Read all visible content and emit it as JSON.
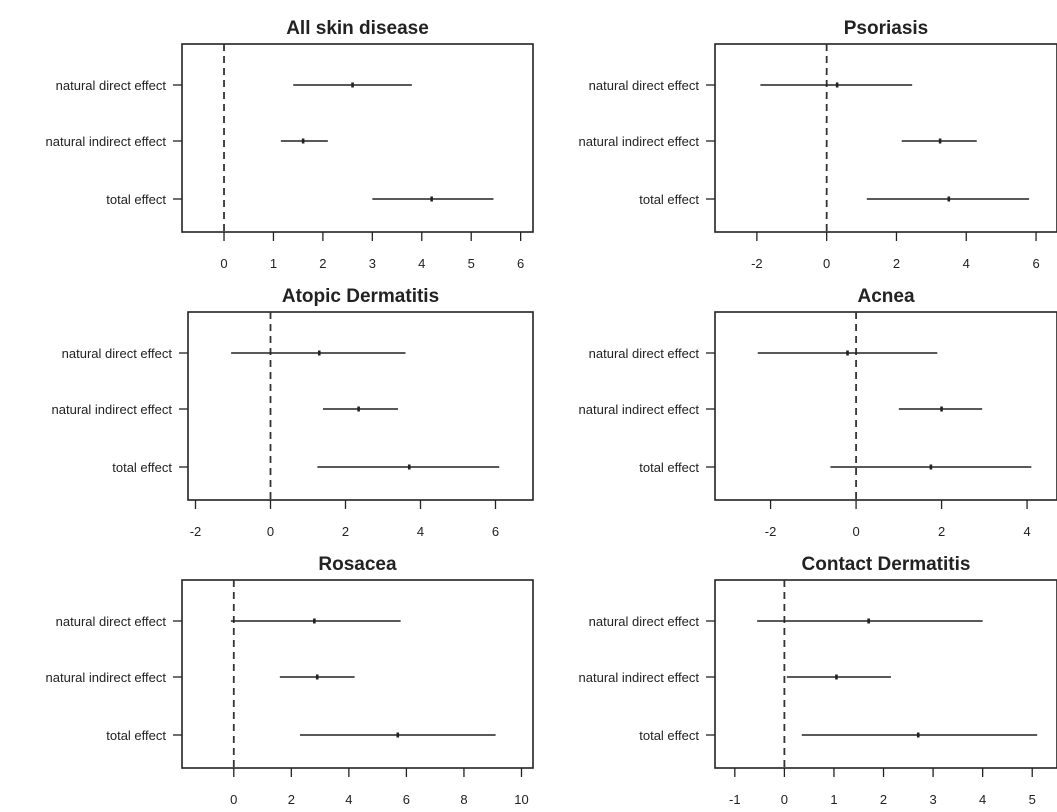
{
  "chart_data": [
    {
      "type": "forest",
      "title": "All skin disease",
      "categories": [
        "natural direct effect",
        "natural indirect effect",
        "total effect"
      ],
      "estimates": [
        2.6,
        1.6,
        4.2
      ],
      "lower": [
        1.4,
        1.15,
        3.0
      ],
      "upper": [
        3.8,
        2.1,
        5.45
      ],
      "xlim": [
        -0.85,
        6.25
      ],
      "xticks": [
        0,
        1,
        2,
        3,
        4,
        5,
        6
      ],
      "reference_line": 0
    },
    {
      "type": "forest",
      "title": "Psoriasis",
      "categories": [
        "natural direct effect",
        "natural indirect effect",
        "total effect"
      ],
      "estimates": [
        0.3,
        3.25,
        3.5
      ],
      "lower": [
        -1.9,
        2.15,
        1.15
      ],
      "upper": [
        2.45,
        4.3,
        5.8
      ],
      "xlim": [
        -3.2,
        6.6
      ],
      "xticks": [
        -2,
        0,
        2,
        4,
        6
      ],
      "reference_line": 0
    },
    {
      "type": "forest",
      "title": "Atopic Dermatitis",
      "categories": [
        "natural direct effect",
        "natural indirect effect",
        "total effect"
      ],
      "estimates": [
        1.3,
        2.35,
        3.7
      ],
      "lower": [
        -1.05,
        1.4,
        1.25
      ],
      "upper": [
        3.6,
        3.4,
        6.1
      ],
      "xlim": [
        -2.2,
        7.0
      ],
      "xticks": [
        -2,
        0,
        2,
        4,
        6
      ],
      "reference_line": 0
    },
    {
      "type": "forest",
      "title": "Acnea",
      "categories": [
        "natural direct effect",
        "natural indirect effect",
        "total effect"
      ],
      "estimates": [
        -0.2,
        2.0,
        1.75
      ],
      "lower": [
        -2.3,
        1.0,
        -0.6
      ],
      "upper": [
        1.9,
        2.95,
        4.1
      ],
      "xlim": [
        -3.3,
        4.7
      ],
      "xticks": [
        -2,
        0,
        2,
        4
      ],
      "reference_line": 0
    },
    {
      "type": "forest",
      "title": "Rosacea",
      "categories": [
        "natural direct effect",
        "natural indirect effect",
        "total effect"
      ],
      "estimates": [
        2.8,
        2.9,
        5.7
      ],
      "lower": [
        -0.1,
        1.6,
        2.3
      ],
      "upper": [
        5.8,
        4.2,
        9.1
      ],
      "xlim": [
        -1.8,
        10.4
      ],
      "xticks": [
        0,
        2,
        4,
        6,
        8,
        10
      ],
      "reference_line": 0
    },
    {
      "type": "forest",
      "title": "Contact Dermatitis",
      "categories": [
        "natural direct effect",
        "natural indirect effect",
        "total effect"
      ],
      "estimates": [
        1.7,
        1.05,
        2.7
      ],
      "lower": [
        -0.55,
        0.05,
        0.35
      ],
      "upper": [
        4.0,
        2.15,
        5.1
      ],
      "xlim": [
        -1.4,
        5.5
      ],
      "xticks": [
        -1,
        0,
        1,
        2,
        3,
        4,
        5
      ],
      "reference_line": 0
    }
  ]
}
